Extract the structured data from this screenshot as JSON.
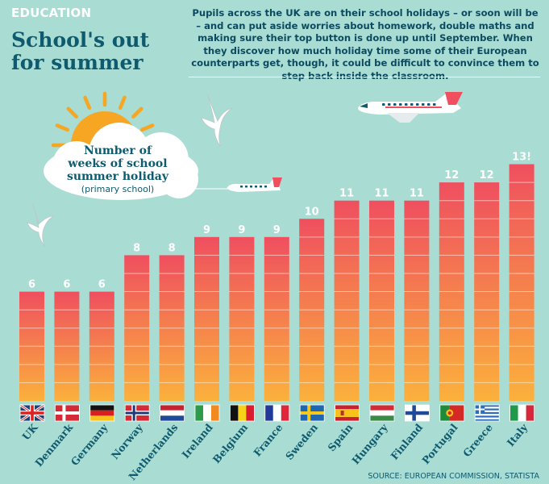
{
  "header": {
    "tag": "EDUCATION",
    "title": "School's out for summer",
    "intro": "Pupils across the UK are on their school holidays – or soon will be – and can put aside worries about homework, double maths and making sure their top button is done up until September. When they discover how much holiday time some of their European counterparts get, though, it could be difficult to convince them to step back inside the classroom."
  },
  "cloud": {
    "line1": "Number of",
    "line2": "weeks of school",
    "line3": "summer holiday",
    "line4": "(primary school)"
  },
  "source": "SOURCE: EUROPEAN COMMISSION, STATISTA",
  "colors": {
    "background": "#a9dcd3",
    "bar_top": "#ef4f5f",
    "bar_bottom": "#fbb13c",
    "text": "#0e5a6e",
    "sun": "#f6a623"
  },
  "chart_data": {
    "type": "bar",
    "categories": [
      "UK",
      "Denmark",
      "Germany",
      "Norway",
      "Netherlands",
      "Ireland",
      "Belgium",
      "France",
      "Sweden",
      "Spain",
      "Hungary",
      "Finland",
      "Portugal",
      "Greece",
      "Italy"
    ],
    "values": [
      6,
      6,
      6,
      8,
      8,
      9,
      9,
      9,
      10,
      11,
      11,
      11,
      12,
      12,
      13
    ],
    "value_labels": [
      "6",
      "6",
      "6",
      "8",
      "8",
      "9",
      "9",
      "9",
      "10",
      "11",
      "11",
      "11",
      "12",
      "12",
      "13!"
    ],
    "ylim": [
      0,
      13.6
    ],
    "flags": [
      "uk-flag",
      "denmark-flag",
      "germany-flag",
      "norway-flag",
      "netherlands-flag",
      "ireland-flag",
      "belgium-flag",
      "france-flag",
      "sweden-flag",
      "spain-flag",
      "hungary-flag",
      "finland-flag",
      "portugal-flag",
      "greece-flag",
      "italy-flag"
    ]
  }
}
